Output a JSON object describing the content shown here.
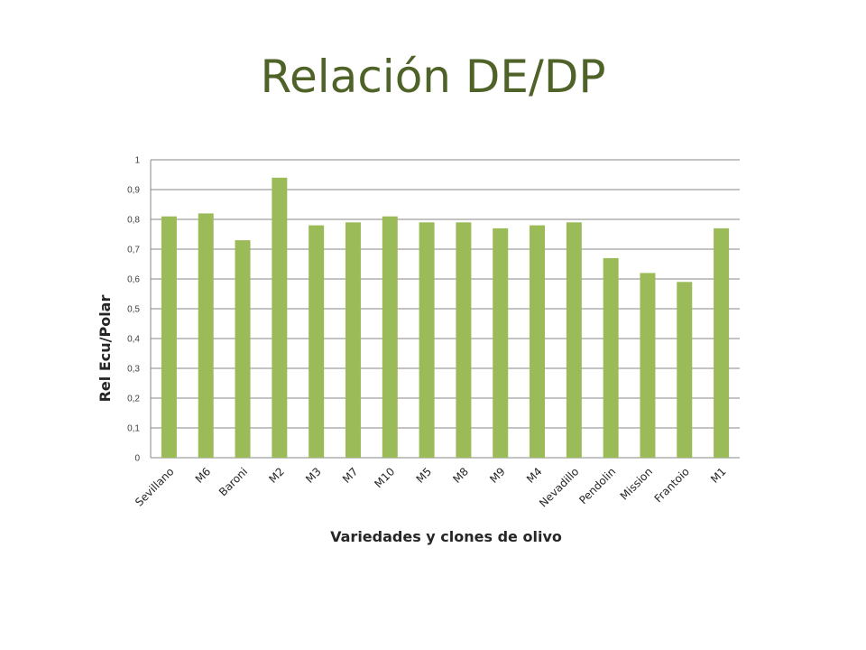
{
  "slide": {
    "title": "Relación DE/DP"
  },
  "chart_data": {
    "type": "bar",
    "title": "",
    "xlabel": "Variedades y clones de olivo",
    "ylabel": "Rel Ecu/Polar",
    "categories": [
      "Sevillano",
      "M6",
      "Baroni",
      "M2",
      "M3",
      "M7",
      "M10",
      "M5",
      "M8",
      "M9",
      "M4",
      "Nevadillo",
      "Pendolin",
      "Mission",
      "Frantoio",
      "M1"
    ],
    "values": [
      0.81,
      0.82,
      0.73,
      0.94,
      0.78,
      0.79,
      0.81,
      0.79,
      0.79,
      0.77,
      0.78,
      0.79,
      0.67,
      0.62,
      0.59,
      0.77
    ],
    "ylim": [
      0,
      1
    ],
    "yticks": [
      0,
      0.1,
      0.2,
      0.3,
      0.4,
      0.5,
      0.6,
      0.7,
      0.8,
      0.9,
      1
    ],
    "ytick_labels": [
      "0",
      "0,1",
      "0,2",
      "0,3",
      "0,4",
      "0,5",
      "0,6",
      "0,7",
      "0,8",
      "0,9",
      "1"
    ],
    "grid": true,
    "legend": "none",
    "bar_color": "#9bbb59",
    "grid_color": "#878787"
  }
}
